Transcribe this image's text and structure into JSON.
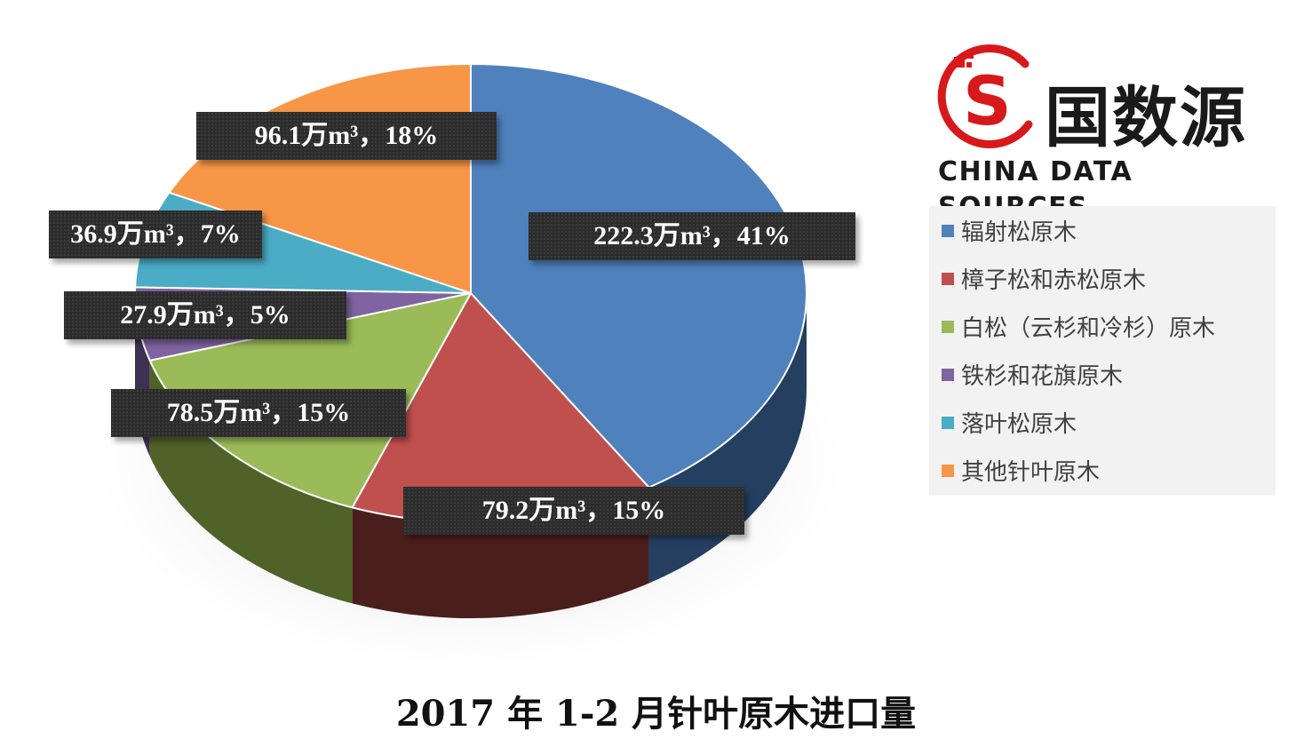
{
  "chart_data": {
    "type": "pie",
    "title": "2017 年 1-2 月针叶原木进口量",
    "unit": "万m³",
    "legend_position": "right",
    "slices": [
      {
        "name": "辐射松原木",
        "value": 222.3,
        "percent": 41,
        "label": "222.3万m³，41%",
        "color": "#4f81bd",
        "side_color": "#243f60"
      },
      {
        "name": "樟子松和赤松原木",
        "value": 79.2,
        "percent": 15,
        "label": "79.2万m³，15%",
        "color": "#c0504d",
        "side_color": "#4a1e1c"
      },
      {
        "name": "白松（云杉和冷杉）原木",
        "value": 78.5,
        "percent": 15,
        "label": "78.5万m³，15%",
        "color": "#9bbb59",
        "side_color": "#4f6228"
      },
      {
        "name": "铁杉和花旗原木",
        "value": 27.9,
        "percent": 5,
        "label": "27.9万m³，5%",
        "color": "#8064a2",
        "side_color": "#3f3151"
      },
      {
        "name": "落叶松原木",
        "value": 36.9,
        "percent": 7,
        "label": "36.9万m³，7%",
        "color": "#4bacc6",
        "side_color": "#215968"
      },
      {
        "name": "其他针叶原木",
        "value": 96.1,
        "percent": 18,
        "label": "96.1万m³，18%",
        "color": "#f79646",
        "side_color": "#974806"
      }
    ]
  },
  "logo": {
    "glyph": "S",
    "name_cn": "国数源",
    "name_en": "CHINA DATA SOURCES",
    "accent": "#d7191c"
  }
}
